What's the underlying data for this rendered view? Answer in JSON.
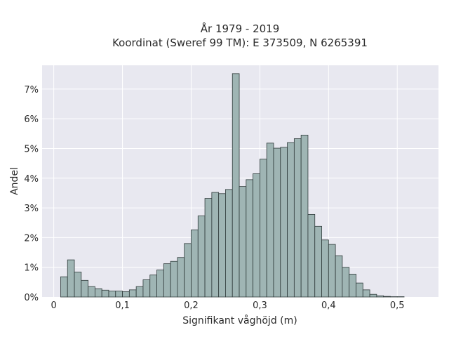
{
  "chart_data": {
    "type": "bar",
    "title_lines": [
      "År 1979 - 2019",
      "Koordinat (Sweref 99 TM): E 373509, N 6265391"
    ],
    "xlabel": "Signifikant våghöjd (m)",
    "ylabel": "Andel",
    "xlim": [
      -0.017,
      0.56
    ],
    "ylim": [
      0,
      7.8
    ],
    "x_ticks": [
      0,
      0.1,
      0.2,
      0.3,
      0.4,
      0.5
    ],
    "x_tick_labels": [
      "0",
      "0,1",
      "0,2",
      "0,3",
      "0,4",
      "0,5"
    ],
    "y_ticks": [
      0,
      1,
      2,
      3,
      4,
      5,
      6,
      7
    ],
    "y_tick_labels": [
      "0%",
      "1%",
      "2%",
      "3%",
      "4%",
      "5%",
      "6%",
      "7%"
    ],
    "grid": true,
    "bin_width": 0.01,
    "bin_start": 0.01,
    "values": [
      0.68,
      1.25,
      0.84,
      0.56,
      0.35,
      0.28,
      0.23,
      0.2,
      0.2,
      0.18,
      0.24,
      0.35,
      0.58,
      0.74,
      0.91,
      1.12,
      1.2,
      1.33,
      1.8,
      2.26,
      2.73,
      3.32,
      3.52,
      3.48,
      3.62,
      7.52,
      3.72,
      3.95,
      4.15,
      4.64,
      5.18,
      5.01,
      5.04,
      5.2,
      5.33,
      5.45,
      2.78,
      2.38,
      1.92,
      1.77,
      1.39,
      1.0,
      0.77,
      0.47,
      0.24,
      0.09,
      0.04,
      0.02,
      0.01,
      0.01
    ],
    "colors": {
      "plot_bg": "#e8e8f0",
      "bar_fill": "#9fb5b4",
      "bar_stroke": "#2f3a3a",
      "grid": "#ffffff"
    }
  }
}
